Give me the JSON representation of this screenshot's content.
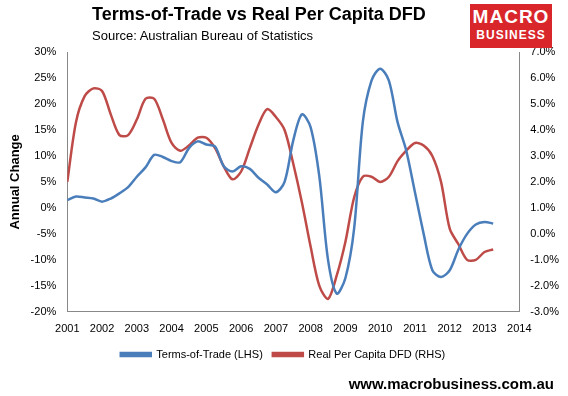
{
  "chart_data": {
    "type": "line",
    "title": "Terms-of-Trade vs Real Per Capita DFD",
    "subtitle": "Source: Australian Bureau of Statistics",
    "logo_text": [
      "MACRO",
      "BUSINESS"
    ],
    "footer": "www.macrobusiness.com.au",
    "y_label": "Annual Change",
    "x": [
      2001,
      2001.25,
      2001.5,
      2001.75,
      2002,
      2002.25,
      2002.5,
      2002.75,
      2003,
      2003.25,
      2003.5,
      2003.75,
      2004,
      2004.25,
      2004.5,
      2004.75,
      2005,
      2005.25,
      2005.5,
      2005.75,
      2006,
      2006.25,
      2006.5,
      2006.75,
      2007,
      2007.25,
      2007.5,
      2007.75,
      2008,
      2008.25,
      2008.5,
      2008.75,
      2009,
      2009.25,
      2009.5,
      2009.75,
      2010,
      2010.25,
      2010.5,
      2010.75,
      2011,
      2011.25,
      2011.5,
      2011.75,
      2012,
      2012.25,
      2012.5,
      2012.75,
      2013,
      2013.25
    ],
    "series": [
      {
        "name": "Terms-of-Trade (LHS)",
        "color": "#4a7ebb",
        "axis": "y",
        "values": [
          1.5,
          2.2,
          2.0,
          1.8,
          1.2,
          1.8,
          2.8,
          4,
          6,
          7.8,
          10.2,
          9.8,
          9,
          8.8,
          11.5,
          12.8,
          12.2,
          11.8,
          8,
          7,
          8,
          7.5,
          5.8,
          4.5,
          3,
          5,
          13,
          18,
          15.5,
          6,
          -10,
          -16.5,
          -13.5,
          -4,
          16.5,
          24.5,
          26.8,
          24.5,
          16.5,
          11,
          3,
          -5,
          -12,
          -13.3,
          -12,
          -8,
          -5,
          -3.2,
          -2.7,
          -3
        ]
      },
      {
        "name": "Real Per Capita DFD (RHS)",
        "color": "#be4b48",
        "axis": "y2",
        "values": [
          2.0,
          4.3,
          5.3,
          5.6,
          5.5,
          4.6,
          3.8,
          3.8,
          4.4,
          5.2,
          5.2,
          4.4,
          3.5,
          3.2,
          3.4,
          3.7,
          3.7,
          3.3,
          2.6,
          2.1,
          2.4,
          3.3,
          4.2,
          4.8,
          4.5,
          4.0,
          2.7,
          1.2,
          -0.5,
          -2.0,
          -2.5,
          -1.6,
          -0.3,
          1.4,
          2.2,
          2.2,
          2.0,
          2.2,
          2.8,
          3.2,
          3.5,
          3.4,
          3.0,
          2.0,
          0.2,
          -0.4,
          -1.0,
          -1.0,
          -0.7,
          -0.6
        ]
      }
    ],
    "xlim": [
      2001,
      2014
    ],
    "xticks": [
      2001,
      2002,
      2003,
      2004,
      2005,
      2006,
      2007,
      2008,
      2009,
      2010,
      2011,
      2012,
      2013,
      2014
    ],
    "ylim": [
      -20,
      30
    ],
    "yticks": [
      {
        "value": -20,
        "label": "-20%"
      },
      {
        "value": -15,
        "label": "-15%"
      },
      {
        "value": -10,
        "label": "-10%"
      },
      {
        "value": -5,
        "label": "-5%"
      },
      {
        "value": 0,
        "label": "0%"
      },
      {
        "value": 5,
        "label": "5%"
      },
      {
        "value": 10,
        "label": "10%"
      },
      {
        "value": 15,
        "label": "15%"
      },
      {
        "value": 20,
        "label": "20%"
      },
      {
        "value": 25,
        "label": "25%"
      },
      {
        "value": 30,
        "label": "30%"
      }
    ],
    "y2lim": [
      -3,
      7
    ],
    "y2ticks": [
      {
        "value": -3,
        "label": "-3.0%"
      },
      {
        "value": -2,
        "label": "-2.0%"
      },
      {
        "value": -1,
        "label": "-1.0%"
      },
      {
        "value": 0,
        "label": "0.0%"
      },
      {
        "value": 1,
        "label": "1.0%"
      },
      {
        "value": 2,
        "label": "2.0%"
      },
      {
        "value": 3,
        "label": "3.0%"
      },
      {
        "value": 4,
        "label": "4.0%"
      },
      {
        "value": 5,
        "label": "5.0%"
      },
      {
        "value": 6,
        "label": "6.0%"
      },
      {
        "value": 7,
        "label": "7.0%"
      }
    ],
    "grid": false,
    "legend": "bottom"
  }
}
